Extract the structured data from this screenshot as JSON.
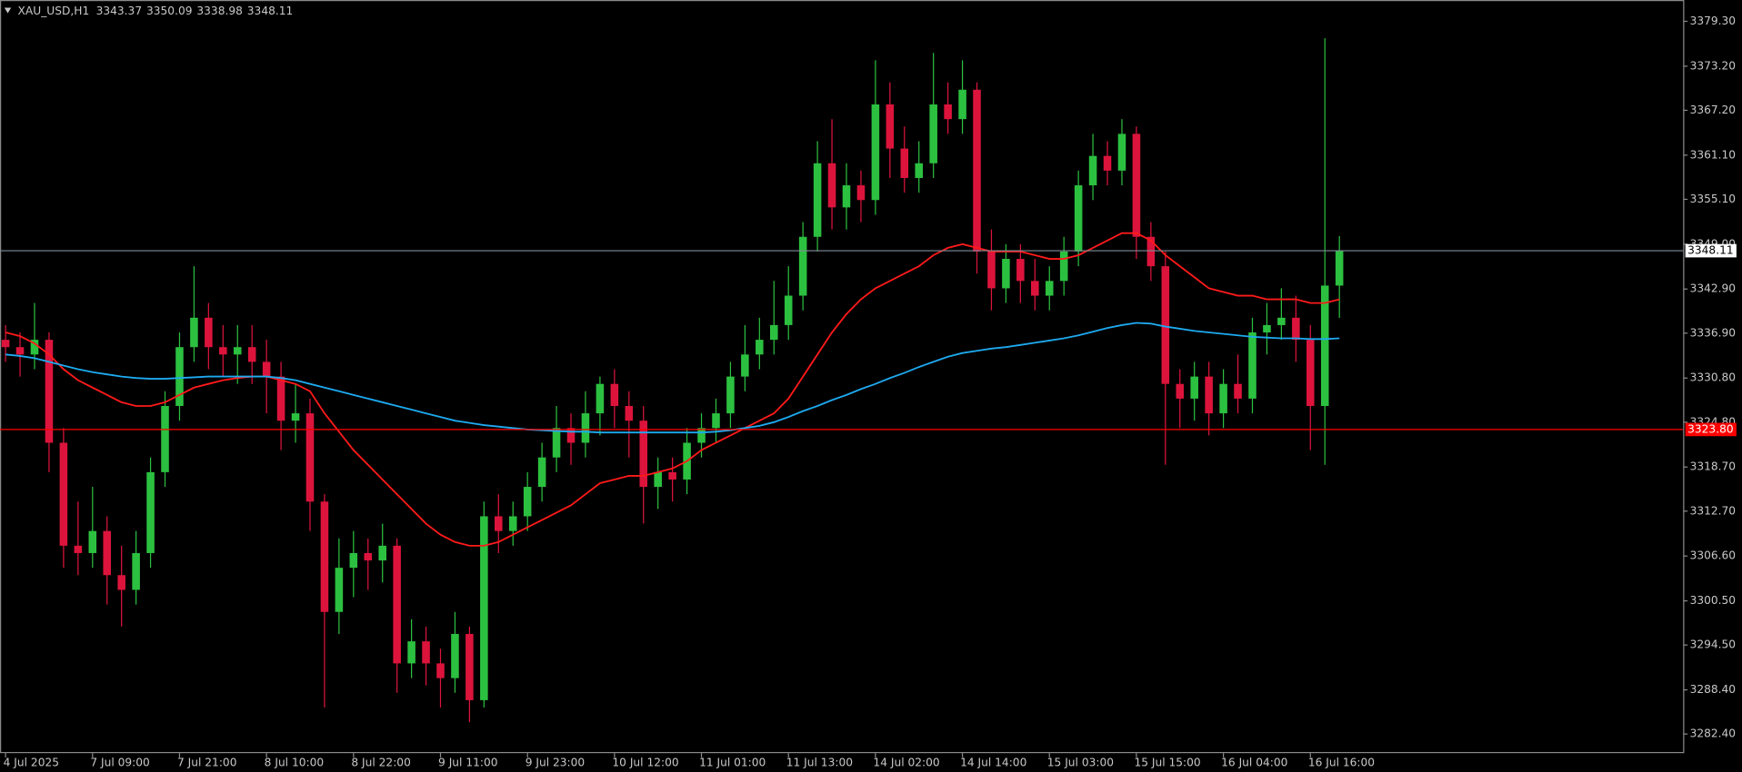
{
  "chart_data": {
    "type": "candlestick",
    "symbol": "XAU_USD,H1",
    "bull_color": "#2cc040",
    "bear_color": "#dc143c",
    "ylim": [
      3279.8,
      3382.2
    ],
    "yticks": [
      {
        "value": 3379.3,
        "label": "3379.30"
      },
      {
        "value": 3373.2,
        "label": "3373.20"
      },
      {
        "value": 3367.2,
        "label": "3367.20"
      },
      {
        "value": 3361.1,
        "label": "3361.10"
      },
      {
        "value": 3355.1,
        "label": "3355.10"
      },
      {
        "value": 3349,
        "label": "3349.00"
      },
      {
        "value": 3342.9,
        "label": "3342.90"
      },
      {
        "value": 3336.9,
        "label": "3336.90"
      },
      {
        "value": 3330.8,
        "label": "3330.80"
      },
      {
        "value": 3324.8,
        "label": "3324.80"
      },
      {
        "value": 3318.7,
        "label": "3318.70"
      },
      {
        "value": 3312.7,
        "label": "3312.70"
      },
      {
        "value": 3306.6,
        "label": "3306.60"
      },
      {
        "value": 3300.5,
        "label": "3300.50"
      },
      {
        "value": 3294.5,
        "label": "3294.50"
      },
      {
        "value": 3288.4,
        "label": "3288.40"
      },
      {
        "value": 3282.4,
        "label": "3282.40"
      }
    ],
    "categories": [
      "4 Jul 2025",
      null,
      null,
      null,
      null,
      null,
      "7 Jul 09:00",
      null,
      null,
      null,
      null,
      null,
      "7 Jul 21:00",
      null,
      null,
      null,
      null,
      null,
      "8 Jul 10:00",
      null,
      null,
      null,
      null,
      null,
      "8 Jul 22:00",
      null,
      null,
      null,
      null,
      null,
      "9 Jul 11:00",
      null,
      null,
      null,
      null,
      null,
      "9 Jul 23:00",
      null,
      null,
      null,
      null,
      null,
      "10 Jul 12:00",
      null,
      null,
      null,
      null,
      null,
      "11 Jul 01:00",
      null,
      null,
      null,
      null,
      null,
      "11 Jul 13:00",
      null,
      null,
      null,
      null,
      null,
      "14 Jul 02:00",
      null,
      null,
      null,
      null,
      null,
      "14 Jul 14:00",
      null,
      null,
      null,
      null,
      null,
      "15 Jul 03:00",
      null,
      null,
      null,
      null,
      null,
      "15 Jul 15:00",
      null,
      null,
      null,
      null,
      null,
      "16 Jul 04:00",
      null,
      null,
      null,
      null,
      null,
      "16 Jul 16:00",
      null,
      null
    ],
    "candles": [
      [
        3336,
        3338,
        3333,
        3335
      ],
      [
        3335,
        3337,
        3331,
        3334
      ],
      [
        3334,
        3341,
        3332,
        3336
      ],
      [
        3336,
        3337,
        3318,
        3322
      ],
      [
        3322,
        3324,
        3305,
        3308
      ],
      [
        3308,
        3314,
        3304,
        3307
      ],
      [
        3307,
        3316,
        3305,
        3310
      ],
      [
        3310,
        3312,
        3300,
        3304
      ],
      [
        3304,
        3308,
        3297,
        3302
      ],
      [
        3302,
        3310,
        3300,
        3307
      ],
      [
        3307,
        3320,
        3305,
        3318
      ],
      [
        3318,
        3329,
        3316,
        3327
      ],
      [
        3327,
        3337,
        3325,
        3335
      ],
      [
        3335,
        3346,
        3333,
        3339
      ],
      [
        3339,
        3341,
        3332,
        3335
      ],
      [
        3335,
        3338,
        3331,
        3334
      ],
      [
        3334,
        3338,
        3330,
        3335
      ],
      [
        3335,
        3338,
        3330,
        3333
      ],
      [
        3333,
        3336,
        3326,
        3331
      ],
      [
        3331,
        3333,
        3321,
        3325
      ],
      [
        3325,
        3330,
        3322,
        3326
      ],
      [
        3326,
        3328,
        3310,
        3314
      ],
      [
        3314,
        3315,
        3286,
        3299
      ],
      [
        3299,
        3309,
        3296,
        3305
      ],
      [
        3305,
        3310,
        3301,
        3307
      ],
      [
        3307,
        3309,
        3302,
        3306
      ],
      [
        3306,
        3311,
        3303,
        3308
      ],
      [
        3308,
        3309,
        3288,
        3292
      ],
      [
        3292,
        3298,
        3290,
        3295
      ],
      [
        3295,
        3297,
        3289,
        3292
      ],
      [
        3292,
        3294,
        3286,
        3290
      ],
      [
        3290,
        3299,
        3288,
        3296
      ],
      [
        3296,
        3297,
        3284,
        3287
      ],
      [
        3287,
        3314,
        3286,
        3312
      ],
      [
        3312,
        3315,
        3307,
        3310
      ],
      [
        3310,
        3314,
        3308,
        3312
      ],
      [
        3312,
        3318,
        3310,
        3316
      ],
      [
        3316,
        3322,
        3314,
        3320
      ],
      [
        3320,
        3327,
        3318,
        3324
      ],
      [
        3324,
        3326,
        3319,
        3322
      ],
      [
        3322,
        3329,
        3320,
        3326
      ],
      [
        3326,
        3331,
        3323,
        3330
      ],
      [
        3330,
        3332,
        3324,
        3327
      ],
      [
        3327,
        3329,
        3320,
        3325
      ],
      [
        3325,
        3327,
        3311,
        3316
      ],
      [
        3316,
        3320,
        3313,
        3318
      ],
      [
        3318,
        3320,
        3314,
        3317
      ],
      [
        3317,
        3324,
        3315,
        3322
      ],
      [
        3322,
        3326,
        3320,
        3324
      ],
      [
        3324,
        3328,
        3322,
        3326
      ],
      [
        3326,
        3333,
        3324,
        3331
      ],
      [
        3331,
        3338,
        3329,
        3334
      ],
      [
        3334,
        3339,
        3332,
        3336
      ],
      [
        3336,
        3344,
        3334,
        3338
      ],
      [
        3338,
        3346,
        3336,
        3342
      ],
      [
        3342,
        3352,
        3340,
        3350
      ],
      [
        3350,
        3363,
        3348,
        3360
      ],
      [
        3360,
        3366,
        3351,
        3354
      ],
      [
        3354,
        3360,
        3351,
        3357
      ],
      [
        3357,
        3359,
        3352,
        3355
      ],
      [
        3355,
        3374,
        3353,
        3368
      ],
      [
        3368,
        3371,
        3358,
        3362
      ],
      [
        3362,
        3365,
        3356,
        3358
      ],
      [
        3358,
        3363,
        3356,
        3360
      ],
      [
        3360,
        3375,
        3358,
        3368
      ],
      [
        3368,
        3371,
        3364,
        3366
      ],
      [
        3366,
        3374,
        3364,
        3370
      ],
      [
        3370,
        3371,
        3345,
        3348
      ],
      [
        3348,
        3351,
        3340,
        3343
      ],
      [
        3343,
        3349,
        3341,
        3347
      ],
      [
        3347,
        3349,
        3341,
        3344
      ],
      [
        3344,
        3347,
        3340,
        3342
      ],
      [
        3342,
        3346,
        3340,
        3344
      ],
      [
        3344,
        3350,
        3342,
        3348
      ],
      [
        3348,
        3359,
        3346,
        3357
      ],
      [
        3357,
        3364,
        3355,
        3361
      ],
      [
        3361,
        3363,
        3357,
        3359
      ],
      [
        3359,
        3366,
        3357,
        3364
      ],
      [
        3364,
        3365,
        3347,
        3350
      ],
      [
        3350,
        3352,
        3344,
        3346
      ],
      [
        3346,
        3348,
        3319,
        3330
      ],
      [
        3330,
        3332,
        3324,
        3328
      ],
      [
        3328,
        3333,
        3325,
        3331
      ],
      [
        3331,
        3333,
        3323,
        3326
      ],
      [
        3326,
        3332,
        3324,
        3330
      ],
      [
        3330,
        3334,
        3326,
        3328
      ],
      [
        3328,
        3339,
        3326,
        3337
      ],
      [
        3337,
        3341,
        3334,
        3338
      ],
      [
        3338,
        3343,
        3336,
        3339
      ],
      [
        3339,
        3342,
        3333,
        3336
      ],
      [
        3336,
        3338,
        3321,
        3327
      ],
      [
        3327,
        3377,
        3319,
        3343.37
      ],
      [
        3343.37,
        3350.09,
        3338.98,
        3348.11
      ]
    ],
    "series": [
      {
        "color": "#ff1a1a",
        "values": [
          3337,
          3336.5,
          3335.5,
          3334,
          3332,
          3330.5,
          3329.5,
          3328.5,
          3327.5,
          3327,
          3327,
          3327.5,
          3328.5,
          3329.5,
          3330,
          3330.5,
          3330.8,
          3331,
          3331,
          3330.5,
          3330,
          3329,
          3326,
          3323.5,
          3321,
          3319,
          3317,
          3315,
          3313,
          3311,
          3309.5,
          3308.5,
          3308,
          3308,
          3308.5,
          3309.5,
          3310.5,
          3311.5,
          3312.5,
          3313.5,
          3315,
          3316.5,
          3317,
          3317.5,
          3317.5,
          3318,
          3318.5,
          3319.5,
          3321,
          3322,
          3323,
          3324,
          3325,
          3326,
          3328,
          3331,
          3334,
          3337,
          3339.5,
          3341.5,
          3343,
          3344,
          3345,
          3346,
          3347.5,
          3348.5,
          3349,
          3348.5,
          3348,
          3348,
          3348,
          3347.5,
          3347,
          3347,
          3347.5,
          3348.5,
          3349.5,
          3350.5,
          3350.5,
          3349.5,
          3347.5,
          3346,
          3344.5,
          3343,
          3342.5,
          3342,
          3342,
          3341.5,
          3341.5,
          3341.5,
          3341,
          3341,
          3341.5
        ]
      },
      {
        "color": "#1eaaf0",
        "values": [
          3334,
          3333.8,
          3333.5,
          3333,
          3332.5,
          3332,
          3331.6,
          3331.3,
          3331,
          3330.8,
          3330.7,
          3330.7,
          3330.8,
          3330.9,
          3331,
          3331,
          3331,
          3331,
          3331,
          3330.8,
          3330.5,
          3330,
          3329.5,
          3329,
          3328.5,
          3328,
          3327.5,
          3327,
          3326.5,
          3326,
          3325.5,
          3325,
          3324.7,
          3324.4,
          3324.2,
          3324,
          3323.8,
          3323.7,
          3323.6,
          3323.5,
          3323.5,
          3323.4,
          3323.4,
          3323.4,
          3323.4,
          3323.4,
          3323.4,
          3323.4,
          3323.4,
          3323.5,
          3323.7,
          3324,
          3324.3,
          3324.8,
          3325.5,
          3326.3,
          3327,
          3327.8,
          3328.5,
          3329.3,
          3330,
          3330.8,
          3331.5,
          3332.3,
          3333,
          3333.7,
          3334.2,
          3334.5,
          3334.8,
          3335,
          3335.3,
          3335.6,
          3335.9,
          3336.2,
          3336.6,
          3337.1,
          3337.6,
          3338,
          3338.3,
          3338.2,
          3337.8,
          3337.5,
          3337.2,
          3337,
          3336.8,
          3336.6,
          3336.4,
          3336.3,
          3336.2,
          3336.2,
          3336.1,
          3336.1,
          3336.2
        ]
      }
    ],
    "hlines": [
      {
        "value": 3348.11,
        "color": "#7f8c99",
        "label_fill": "#ffffff",
        "label_text": "#000000"
      },
      {
        "value": 3323.8,
        "label": "3323.80",
        "color": "#ff0000",
        "label_fill": "#ff0000",
        "label_text": "#ffffff"
      }
    ]
  }
}
